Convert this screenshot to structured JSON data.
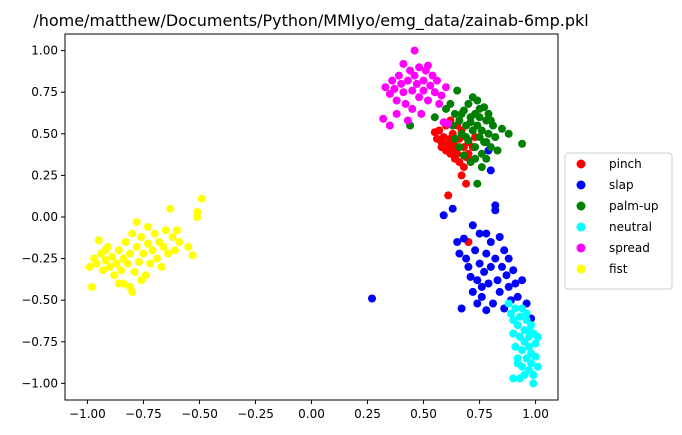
{
  "chart_data": {
    "type": "scatter",
    "title": "/home/matthew/Documents/Python/MMIyo/emg_data/zainab-6mp.pkl",
    "xlabel": "",
    "ylabel": "",
    "xlim": [
      -1.1,
      1.1
    ],
    "ylim": [
      -1.1,
      1.1
    ],
    "xticks": [
      -1.0,
      -0.75,
      -0.5,
      -0.25,
      0.0,
      0.25,
      0.5,
      0.75,
      1.0
    ],
    "xtick_labels": [
      "−1.00",
      "−0.75",
      "−0.50",
      "−0.25",
      "0.00",
      "0.25",
      "0.50",
      "0.75",
      "1.00"
    ],
    "yticks": [
      -1.0,
      -0.75,
      -0.5,
      -0.25,
      0.0,
      0.25,
      0.5,
      0.75,
      1.0
    ],
    "ytick_labels": [
      "−1.00",
      "−0.75",
      "−0.50",
      "−0.25",
      "0.00",
      "0.25",
      "0.50",
      "0.75",
      "1.00"
    ],
    "grid": false,
    "legend_position": "outside-right",
    "series": [
      {
        "name": "pinch",
        "color": "#ff0000",
        "points": [
          [
            0.55,
            0.51
          ],
          [
            0.57,
            0.52
          ],
          [
            0.58,
            0.45
          ],
          [
            0.6,
            0.4
          ],
          [
            0.62,
            0.38
          ],
          [
            0.6,
            0.55
          ],
          [
            0.63,
            0.5
          ],
          [
            0.64,
            0.43
          ],
          [
            0.65,
            0.38
          ],
          [
            0.66,
            0.47
          ],
          [
            0.67,
            0.52
          ],
          [
            0.68,
            0.42
          ],
          [
            0.69,
            0.36
          ],
          [
            0.7,
            0.45
          ],
          [
            0.62,
            0.58
          ],
          [
            0.59,
            0.48
          ],
          [
            0.61,
            0.44
          ],
          [
            0.64,
            0.35
          ],
          [
            0.66,
            0.33
          ],
          [
            0.68,
            0.3
          ],
          [
            0.7,
            0.38
          ],
          [
            0.72,
            0.42
          ],
          [
            0.63,
            0.41
          ],
          [
            0.65,
            0.55
          ],
          [
            0.67,
            0.25
          ],
          [
            0.69,
            0.2
          ],
          [
            0.61,
            0.13
          ],
          [
            0.71,
            0.34
          ],
          [
            0.58,
            0.42
          ],
          [
            0.73,
            0.48
          ],
          [
            0.56,
            0.47
          ],
          [
            0.62,
            0.47
          ],
          [
            0.64,
            0.4
          ],
          [
            0.7,
            -0.15
          ]
        ]
      },
      {
        "name": "slap",
        "color": "#0000ff",
        "points": [
          [
            0.27,
            -0.49
          ],
          [
            0.59,
            0.01
          ],
          [
            0.63,
            0.05
          ],
          [
            0.65,
            -0.15
          ],
          [
            0.66,
            -0.22
          ],
          [
            0.67,
            -0.55
          ],
          [
            0.68,
            -0.13
          ],
          [
            0.69,
            -0.25
          ],
          [
            0.7,
            -0.3
          ],
          [
            0.71,
            -0.36
          ],
          [
            0.72,
            -0.45
          ],
          [
            0.73,
            -0.2
          ],
          [
            0.74,
            -0.38
          ],
          [
            0.75,
            -0.28
          ],
          [
            0.75,
            -0.1
          ],
          [
            0.76,
            -0.48
          ],
          [
            0.77,
            -0.33
          ],
          [
            0.78,
            -0.56
          ],
          [
            0.78,
            -0.22
          ],
          [
            0.79,
            -0.4
          ],
          [
            0.8,
            -0.15
          ],
          [
            0.8,
            -0.3
          ],
          [
            0.81,
            -0.52
          ],
          [
            0.82,
            -0.25
          ],
          [
            0.82,
            0.04
          ],
          [
            0.82,
            0.07
          ],
          [
            0.83,
            -0.38
          ],
          [
            0.84,
            -0.12
          ],
          [
            0.84,
            -0.45
          ],
          [
            0.85,
            -0.3
          ],
          [
            0.86,
            -0.2
          ],
          [
            0.86,
            -0.55
          ],
          [
            0.87,
            -0.35
          ],
          [
            0.88,
            -0.42
          ],
          [
            0.88,
            -0.25
          ],
          [
            0.89,
            -0.5
          ],
          [
            0.9,
            -0.32
          ],
          [
            0.91,
            -0.4
          ],
          [
            0.92,
            -0.48
          ],
          [
            0.94,
            -0.38
          ],
          [
            0.96,
            -0.52
          ],
          [
            0.98,
            -0.61
          ],
          [
            0.72,
            -0.05
          ],
          [
            0.74,
            -0.52
          ],
          [
            0.78,
            -0.1
          ],
          [
            0.8,
            0.28
          ],
          [
            0.79,
            0.4
          ],
          [
            0.76,
            -0.42
          ]
        ]
      },
      {
        "name": "palm-up",
        "color": "#008000",
        "points": [
          [
            0.44,
            0.55
          ],
          [
            0.55,
            0.6
          ],
          [
            0.6,
            0.65
          ],
          [
            0.62,
            0.68
          ],
          [
            0.64,
            0.62
          ],
          [
            0.65,
            0.76
          ],
          [
            0.66,
            0.58
          ],
          [
            0.67,
            0.5
          ],
          [
            0.68,
            0.64
          ],
          [
            0.69,
            0.55
          ],
          [
            0.7,
            0.46
          ],
          [
            0.7,
            0.68
          ],
          [
            0.71,
            0.6
          ],
          [
            0.72,
            0.52
          ],
          [
            0.72,
            0.72
          ],
          [
            0.73,
            0.42
          ],
          [
            0.73,
            0.62
          ],
          [
            0.74,
            0.55
          ],
          [
            0.74,
            0.7
          ],
          [
            0.75,
            0.48
          ],
          [
            0.75,
            0.6
          ],
          [
            0.76,
            0.38
          ],
          [
            0.76,
            0.52
          ],
          [
            0.77,
            0.66
          ],
          [
            0.77,
            0.45
          ],
          [
            0.78,
            0.58
          ],
          [
            0.78,
            0.35
          ],
          [
            0.79,
            0.5
          ],
          [
            0.8,
            0.42
          ],
          [
            0.81,
            0.55
          ],
          [
            0.82,
            0.48
          ],
          [
            0.83,
            0.4
          ],
          [
            0.63,
            0.55
          ],
          [
            0.66,
            0.42
          ],
          [
            0.68,
            0.37
          ],
          [
            0.71,
            0.33
          ],
          [
            0.74,
            0.2
          ],
          [
            0.76,
            0.3
          ],
          [
            0.78,
            0.45
          ],
          [
            0.79,
            0.62
          ],
          [
            0.8,
            0.58
          ],
          [
            0.85,
            0.53
          ],
          [
            0.88,
            0.5
          ],
          [
            0.94,
            0.44
          ],
          [
            0.71,
            0.57
          ],
          [
            0.69,
            0.48
          ],
          [
            0.73,
            0.35
          ],
          [
            0.75,
            0.65
          ],
          [
            0.67,
            0.62
          ],
          [
            0.64,
            0.47
          ]
        ]
      },
      {
        "name": "neutral",
        "color": "#00ffff",
        "points": [
          [
            0.88,
            -0.52
          ],
          [
            0.89,
            -0.58
          ],
          [
            0.9,
            -0.62
          ],
          [
            0.9,
            -0.7
          ],
          [
            0.91,
            -0.55
          ],
          [
            0.91,
            -0.78
          ],
          [
            0.92,
            -0.65
          ],
          [
            0.92,
            -0.85
          ],
          [
            0.93,
            -0.72
          ],
          [
            0.93,
            -0.6
          ],
          [
            0.94,
            -0.8
          ],
          [
            0.94,
            -0.9
          ],
          [
            0.95,
            -0.68
          ],
          [
            0.95,
            -0.75
          ],
          [
            0.95,
            -0.95
          ],
          [
            0.96,
            -0.62
          ],
          [
            0.96,
            -0.85
          ],
          [
            0.97,
            -0.72
          ],
          [
            0.97,
            -0.78
          ],
          [
            0.97,
            -0.92
          ],
          [
            0.98,
            -0.65
          ],
          [
            0.98,
            -0.82
          ],
          [
            0.98,
            -0.88
          ],
          [
            0.99,
            -0.7
          ],
          [
            0.99,
            -0.95
          ],
          [
            1.0,
            -0.76
          ],
          [
            1.0,
            -0.84
          ],
          [
            1.01,
            -0.72
          ],
          [
            1.01,
            -0.9
          ],
          [
            0.93,
            -0.97
          ],
          [
            0.99,
            -1.0
          ],
          [
            0.9,
            -0.97
          ],
          [
            0.94,
            -0.55
          ],
          [
            0.96,
            -0.58
          ],
          [
            0.92,
            -0.88
          ],
          [
            0.97,
            -0.68
          ]
        ]
      },
      {
        "name": "spread",
        "color": "#ff00ff",
        "points": [
          [
            0.32,
            0.59
          ],
          [
            0.35,
            0.55
          ],
          [
            0.33,
            0.78
          ],
          [
            0.35,
            0.74
          ],
          [
            0.36,
            0.82
          ],
          [
            0.37,
            0.77
          ],
          [
            0.38,
            0.7
          ],
          [
            0.39,
            0.85
          ],
          [
            0.4,
            0.8
          ],
          [
            0.41,
            0.75
          ],
          [
            0.41,
            0.92
          ],
          [
            0.42,
            0.68
          ],
          [
            0.43,
            0.82
          ],
          [
            0.44,
            0.88
          ],
          [
            0.45,
            0.76
          ],
          [
            0.45,
            0.65
          ],
          [
            0.46,
            1.0
          ],
          [
            0.46,
            0.85
          ],
          [
            0.47,
            0.8
          ],
          [
            0.48,
            0.72
          ],
          [
            0.48,
            0.9
          ],
          [
            0.49,
            0.62
          ],
          [
            0.5,
            0.82
          ],
          [
            0.5,
            0.76
          ],
          [
            0.51,
            0.88
          ],
          [
            0.52,
            0.7
          ],
          [
            0.53,
            0.79
          ],
          [
            0.54,
            0.85
          ],
          [
            0.55,
            0.75
          ],
          [
            0.56,
            0.82
          ],
          [
            0.57,
            0.68
          ],
          [
            0.58,
            0.73
          ],
          [
            0.59,
            0.57
          ],
          [
            0.6,
            0.78
          ],
          [
            0.61,
            0.56
          ],
          [
            0.38,
            0.62
          ],
          [
            0.43,
            0.58
          ],
          [
            0.52,
            0.91
          ]
        ]
      },
      {
        "name": "fist",
        "color": "#ffff00",
        "points": [
          [
            -0.99,
            -0.3
          ],
          [
            -0.98,
            -0.42
          ],
          [
            -0.97,
            -0.25
          ],
          [
            -0.96,
            -0.28
          ],
          [
            -0.95,
            -0.14
          ],
          [
            -0.94,
            -0.22
          ],
          [
            -0.93,
            -0.32
          ],
          [
            -0.92,
            -0.26
          ],
          [
            -0.91,
            -0.18
          ],
          [
            -0.9,
            -0.3
          ],
          [
            -0.89,
            -0.24
          ],
          [
            -0.88,
            -0.35
          ],
          [
            -0.87,
            -0.28
          ],
          [
            -0.86,
            -0.2
          ],
          [
            -0.85,
            -0.32
          ],
          [
            -0.84,
            -0.4
          ],
          [
            -0.84,
            -0.25
          ],
          [
            -0.83,
            -0.15
          ],
          [
            -0.82,
            -0.28
          ],
          [
            -0.81,
            -0.22
          ],
          [
            -0.8,
            -0.45
          ],
          [
            -0.8,
            -0.1
          ],
          [
            -0.79,
            -0.33
          ],
          [
            -0.78,
            -0.03
          ],
          [
            -0.78,
            -0.18
          ],
          [
            -0.77,
            -0.27
          ],
          [
            -0.76,
            -0.12
          ],
          [
            -0.75,
            -0.22
          ],
          [
            -0.74,
            -0.35
          ],
          [
            -0.73,
            -0.06
          ],
          [
            -0.73,
            -0.16
          ],
          [
            -0.72,
            -0.28
          ],
          [
            -0.71,
            -0.2
          ],
          [
            -0.7,
            -0.1
          ],
          [
            -0.69,
            -0.25
          ],
          [
            -0.68,
            -0.15
          ],
          [
            -0.67,
            -0.3
          ],
          [
            -0.66,
            -0.18
          ],
          [
            -0.65,
            -0.08
          ],
          [
            -0.64,
            -0.22
          ],
          [
            -0.63,
            0.05
          ],
          [
            -0.62,
            -0.12
          ],
          [
            -0.61,
            -0.2
          ],
          [
            -0.6,
            -0.08
          ],
          [
            -0.59,
            -0.15
          ],
          [
            -0.55,
            -0.18
          ],
          [
            -0.53,
            -0.23
          ],
          [
            -0.51,
            0.0
          ],
          [
            -0.51,
            0.03
          ],
          [
            -0.49,
            0.11
          ],
          [
            -0.86,
            -0.4
          ],
          [
            -0.81,
            -0.42
          ],
          [
            -0.76,
            -0.38
          ],
          [
            -0.92,
            -0.2
          ]
        ]
      }
    ]
  }
}
